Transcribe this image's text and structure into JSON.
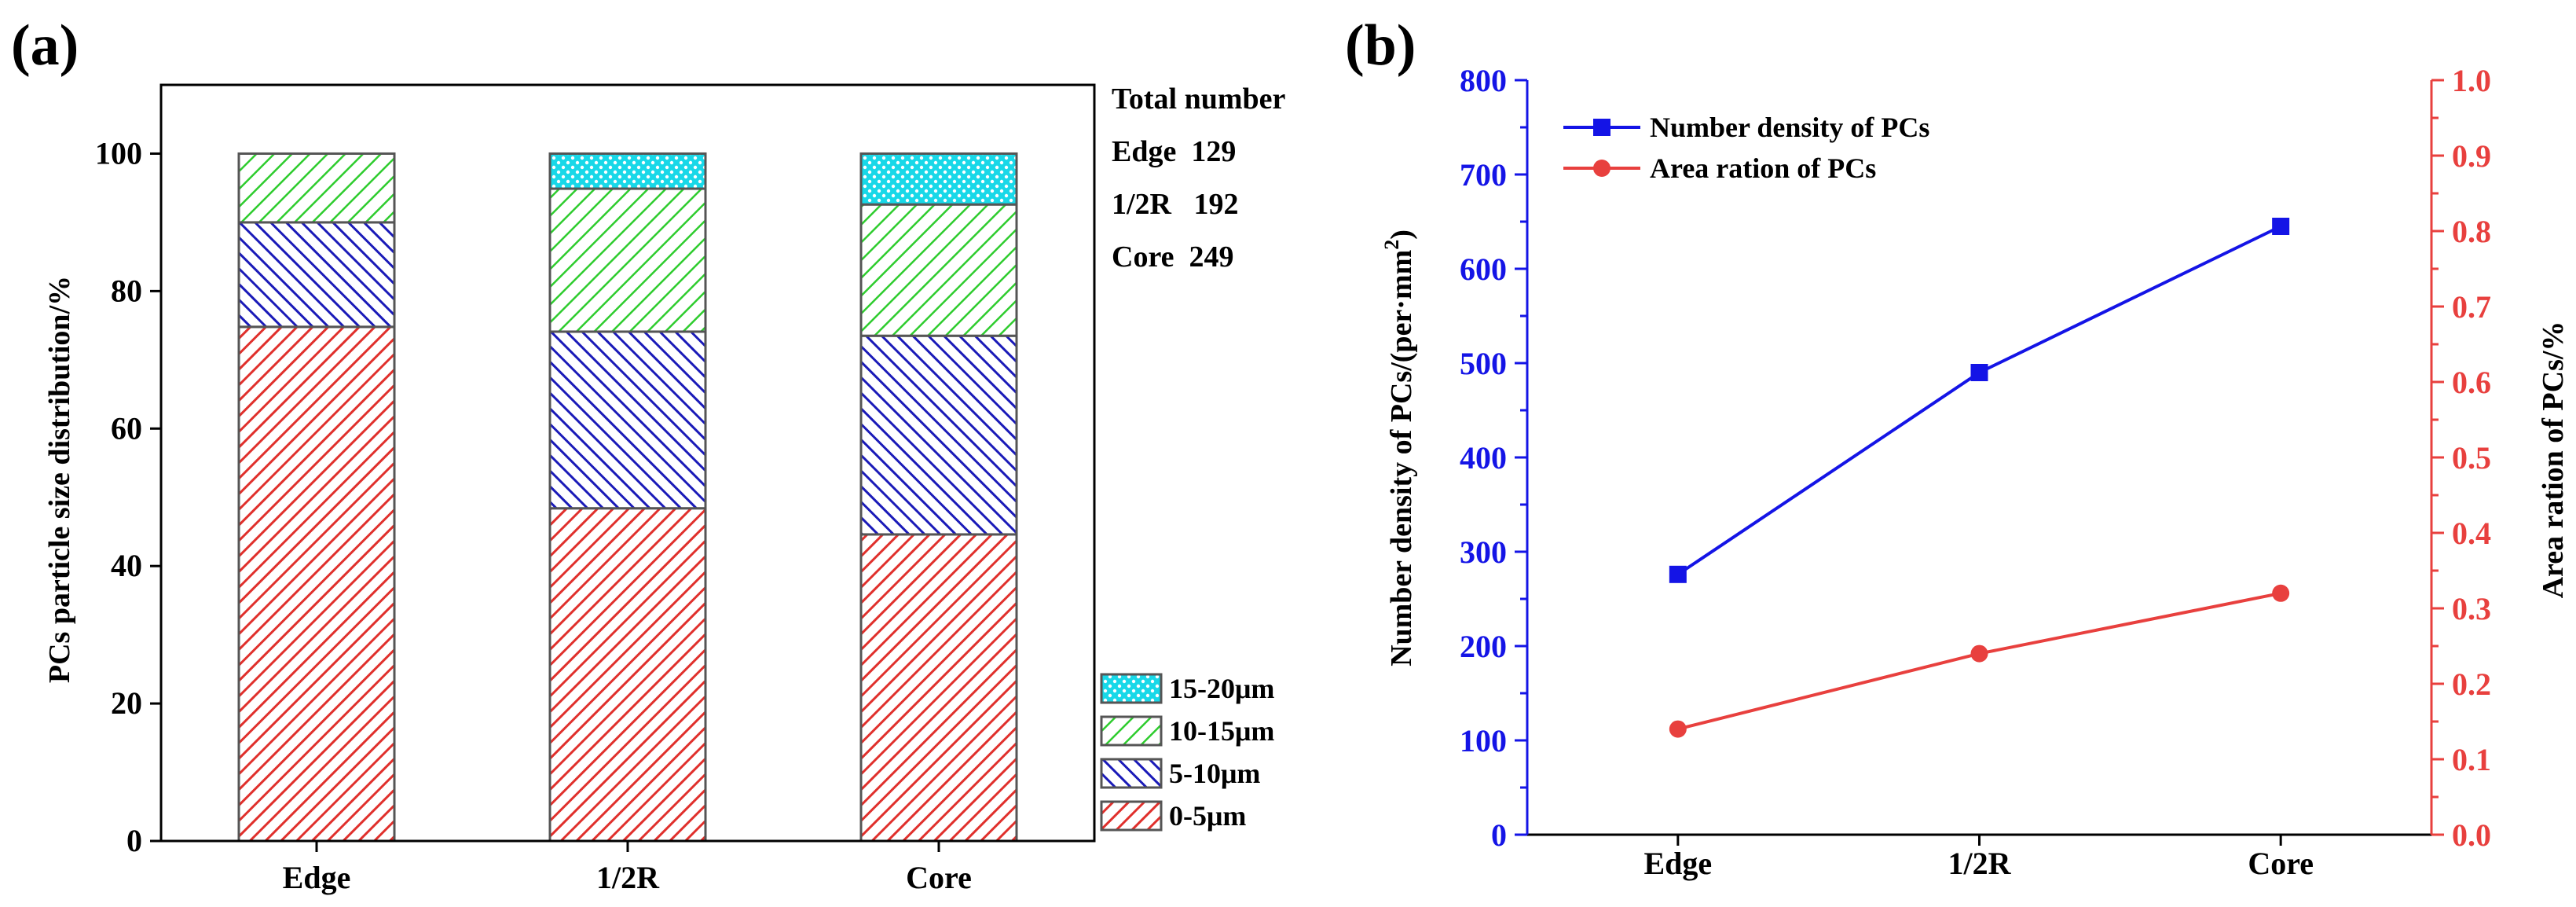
{
  "chart_data": [
    {
      "panel_label": "(a)",
      "type": "bar",
      "stacked": true,
      "categories": [
        "Edge",
        "1/2R",
        "Core"
      ],
      "series": [
        {
          "name": "0-5μm",
          "values": [
            74.8,
            48.4,
            44.6
          ],
          "color": "#e0302c",
          "pattern": "diagonal"
        },
        {
          "name": "5-10μm",
          "values": [
            15.2,
            25.7,
            28.9
          ],
          "color": "#1a1ab8",
          "pattern": "diagonal-reverse"
        },
        {
          "name": "10-15μm",
          "values": [
            10.0,
            20.8,
            19.1
          ],
          "color": "#2ecc2e",
          "pattern": "diagonal"
        },
        {
          "name": "15-20μm",
          "values": [
            0.0,
            5.1,
            7.4
          ],
          "color": "#18d8e8",
          "pattern": "dots"
        }
      ],
      "ylabel": "PCs particle size distribution/%",
      "xlabel": "",
      "ylim": [
        0,
        110
      ],
      "yticks": [
        0,
        20,
        40,
        60,
        80,
        100
      ],
      "legend_position": "bottom-right",
      "annotation": {
        "title": "Total number",
        "rows": [
          "Edge  129",
          "1/2R   192",
          "Core  249"
        ]
      }
    },
    {
      "panel_label": "(b)",
      "type": "line",
      "categories": [
        "Edge",
        "1/2R",
        "Core"
      ],
      "series": [
        {
          "name": "Number density of PCs",
          "values": [
            276,
            490,
            645
          ],
          "axis": "left",
          "color": "#1414e6",
          "marker": "square"
        },
        {
          "name": "Area ration of PCs",
          "values": [
            0.14,
            0.24,
            0.32
          ],
          "axis": "right",
          "color": "#e8403e",
          "marker": "circle"
        }
      ],
      "ylabel_left_prefix": "Number density of PCs/(per·mm",
      "ylabel_left_sup": "2",
      "ylabel_left_suffix": ")",
      "ylabel_right": "Area ration of PCs/%",
      "ylim_left": [
        0,
        800
      ],
      "yticks_left": [
        0,
        100,
        200,
        300,
        400,
        500,
        600,
        700,
        800
      ],
      "ylim_right": [
        0.0,
        1.0
      ],
      "yticks_right": [
        "0.0",
        "0.1",
        "0.2",
        "0.3",
        "0.4",
        "0.5",
        "0.6",
        "0.7",
        "0.8",
        "0.9",
        "1.0"
      ],
      "legend_position": "top-left"
    }
  ]
}
